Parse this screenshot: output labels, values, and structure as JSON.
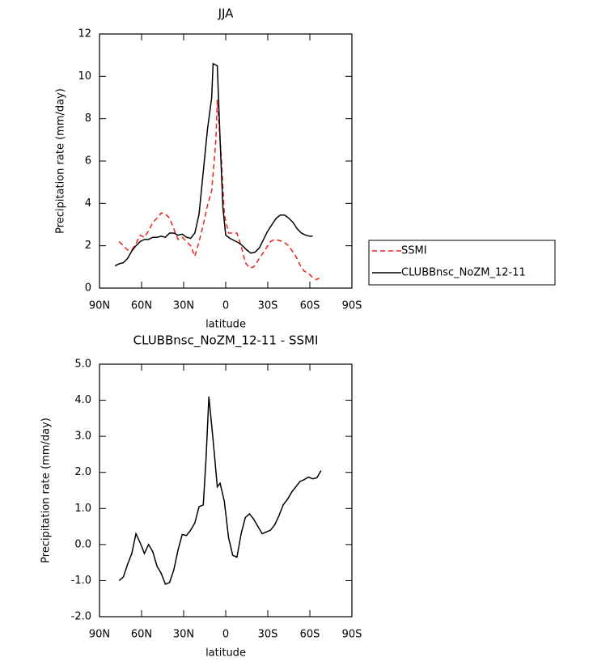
{
  "chart_data": [
    {
      "type": "line",
      "title": "JJA",
      "x_label": "latitude",
      "y_label": "Precipitation rate (mm/day)",
      "xlim": [
        90,
        -90
      ],
      "xticks": [
        {
          "value": 90,
          "label": "90N"
        },
        {
          "value": 60,
          "label": "60N"
        },
        {
          "value": 30,
          "label": "30N"
        },
        0,
        {
          "value": -30,
          "label": "30S"
        },
        {
          "value": -60,
          "label": "60S"
        },
        {
          "value": -90,
          "label": "90S"
        }
      ],
      "ylim": [
        0,
        12
      ],
      "yticks": [
        0,
        2,
        4,
        6,
        8,
        10,
        12
      ],
      "legend": "right",
      "series": [
        {
          "name": "SSMI",
          "color": "#e8201e",
          "line_style": "dashed",
          "x": [
            76,
            73,
            70,
            67,
            64,
            61,
            58,
            55,
            52,
            49,
            46,
            43,
            40,
            37,
            34,
            31,
            28,
            25,
            22,
            19,
            16,
            13,
            10,
            7,
            6,
            3,
            1,
            -2,
            -5,
            -8,
            -11,
            -14,
            -17,
            -20,
            -23,
            -26,
            -29,
            -32,
            -35,
            -38,
            -41,
            -44,
            -47,
            -50,
            -53,
            -56,
            -59,
            -62,
            -65,
            -67
          ],
          "values": [
            2.2,
            2.0,
            1.8,
            1.8,
            2.1,
            2.5,
            2.4,
            2.7,
            3.1,
            3.3,
            3.55,
            3.5,
            3.3,
            2.8,
            2.3,
            2.4,
            2.2,
            2.0,
            1.5,
            2.2,
            3.0,
            3.9,
            4.6,
            7.0,
            8.9,
            6.0,
            3.5,
            2.6,
            2.6,
            2.6,
            2.0,
            1.2,
            0.95,
            1.0,
            1.3,
            1.6,
            1.9,
            2.2,
            2.3,
            2.25,
            2.2,
            2.05,
            1.8,
            1.5,
            1.1,
            0.8,
            0.7,
            0.5,
            0.4,
            0.5
          ]
        },
        {
          "name": "CLUBBnsc_NoZM_12-11",
          "color": "#000000",
          "line_style": "solid",
          "x": [
            79,
            76,
            73,
            70,
            67,
            64,
            61,
            58,
            55,
            52,
            49,
            46,
            43,
            40,
            37,
            34,
            31,
            28,
            25,
            22,
            19,
            16,
            13,
            10,
            9,
            6,
            4,
            2,
            0,
            -3,
            -6,
            -9,
            -12,
            -15,
            -18,
            -21,
            -24,
            -27,
            -30,
            -33,
            -36,
            -39,
            -42,
            -45,
            -48,
            -51,
            -54,
            -57,
            -60,
            -62
          ],
          "values": [
            1.05,
            1.15,
            1.2,
            1.4,
            1.75,
            2.0,
            2.2,
            2.3,
            2.3,
            2.4,
            2.4,
            2.45,
            2.4,
            2.6,
            2.6,
            2.5,
            2.55,
            2.4,
            2.35,
            2.6,
            3.5,
            5.5,
            7.5,
            9.0,
            10.6,
            10.5,
            7.0,
            3.8,
            2.5,
            2.35,
            2.25,
            2.15,
            2.0,
            1.8,
            1.65,
            1.7,
            1.9,
            2.3,
            2.7,
            3.0,
            3.3,
            3.45,
            3.45,
            3.3,
            3.1,
            2.8,
            2.6,
            2.5,
            2.45,
            2.45
          ]
        }
      ]
    },
    {
      "type": "line",
      "title": "CLUBBnsc_NoZM_12-11 - SSMI",
      "x_label": "latitude",
      "y_label": "Precipitation rate (mm/day)",
      "xlim": [
        90,
        -90
      ],
      "xticks": [
        {
          "value": 90,
          "label": "90N"
        },
        {
          "value": 60,
          "label": "60N"
        },
        {
          "value": 30,
          "label": "30N"
        },
        0,
        {
          "value": -30,
          "label": "30S"
        },
        {
          "value": -60,
          "label": "60S"
        },
        {
          "value": -90,
          "label": "90S"
        }
      ],
      "ylim": [
        -2,
        5
      ],
      "yticks": [
        {
          "value": -2,
          "label": "-2.0"
        },
        {
          "value": -1,
          "label": "-1.0"
        },
        {
          "value": 0,
          "label": "0.0"
        },
        {
          "value": 1,
          "label": "1.0"
        },
        {
          "value": 2,
          "label": "2.0"
        },
        {
          "value": 3,
          "label": "3.0"
        },
        {
          "value": 4,
          "label": "4.0"
        },
        {
          "value": 5,
          "label": "5.0"
        }
      ],
      "color": "#000000",
      "x": [
        76,
        73,
        70,
        67,
        64,
        61,
        58,
        55,
        52,
        49,
        46,
        43,
        40,
        37,
        34,
        31,
        28,
        25,
        22,
        19,
        16,
        14,
        12,
        9,
        6,
        4,
        1,
        -2,
        -5,
        -8,
        -11,
        -14,
        -17,
        -20,
        -23,
        -26,
        -29,
        -32,
        -35,
        -38,
        -41,
        -44,
        -47,
        -50,
        -53,
        -56,
        -59,
        -62,
        -65,
        -68
      ],
      "values": [
        -1.0,
        -0.9,
        -0.55,
        -0.25,
        0.3,
        0.05,
        -0.25,
        0.0,
        -0.2,
        -0.6,
        -0.8,
        -1.1,
        -1.05,
        -0.7,
        -0.15,
        0.28,
        0.25,
        0.4,
        0.6,
        1.05,
        1.1,
        2.4,
        4.1,
        2.9,
        1.6,
        1.7,
        1.2,
        0.2,
        -0.3,
        -0.35,
        0.3,
        0.75,
        0.85,
        0.7,
        0.5,
        0.3,
        0.35,
        0.4,
        0.55,
        0.8,
        1.1,
        1.25,
        1.45,
        1.6,
        1.75,
        1.8,
        1.87,
        1.82,
        1.85,
        2.05
      ]
    }
  ]
}
